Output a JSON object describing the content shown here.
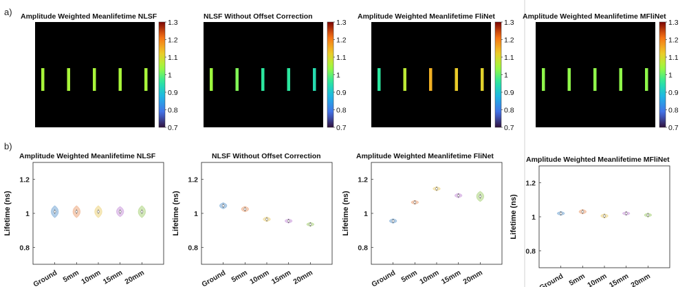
{
  "chart_data": {
    "panel_labels": [
      "a)",
      "b)"
    ],
    "colorbar": {
      "ticks": [
        "1.3",
        "1.2",
        "1.1",
        "1",
        "0.9",
        "0.8",
        "0.7"
      ],
      "range": [
        0.7,
        1.3
      ],
      "colormap": "turbo"
    },
    "heatmaps": [
      {
        "type": "heatmap",
        "title": "Amplitude Weighted Meanlifetime NLSF",
        "background": "#000000",
        "bar_values": [
          1.05,
          1.05,
          1.05,
          1.05,
          1.05
        ]
      },
      {
        "type": "heatmap",
        "title": "NLSF Without Offset Correction",
        "background": "#000000",
        "bar_values": [
          1.04,
          1.02,
          0.96,
          0.96,
          0.94
        ]
      },
      {
        "type": "heatmap",
        "title": "Amplitude Weighted Meanlifetime FliNet",
        "background": "#000000",
        "bar_values": [
          0.96,
          1.07,
          1.15,
          1.12,
          1.11
        ]
      },
      {
        "type": "heatmap",
        "title": "Amplitude Weighted Meanlifetime MFliNet",
        "background": "#000000",
        "bar_values": [
          1.03,
          1.03,
          1.03,
          1.03,
          1.03
        ]
      }
    ],
    "violins": {
      "type": "violin",
      "categories": [
        "Ground",
        "5mm",
        "10mm",
        "15mm",
        "20mm"
      ],
      "ylabel": "Lifetime (ns)",
      "yticks": [
        "0.8",
        "1",
        "1.2"
      ],
      "ylim": [
        0.7,
        1.3
      ],
      "colors": [
        "#9bbfe0",
        "#f2bfa0",
        "#f2dfa0",
        "#d9b6e6",
        "#c2dfa0"
      ],
      "panels": [
        {
          "title": "Amplitude Weighted Meanlifetime NLSF",
          "medians": [
            1.01,
            1.01,
            1.01,
            1.01,
            1.01
          ],
          "spread": [
            0.035,
            0.035,
            0.035,
            0.03,
            0.035
          ]
        },
        {
          "title": "NLSF Without Offset Correction",
          "medians": [
            1.045,
            1.025,
            0.965,
            0.955,
            0.935
          ],
          "spread": [
            0.018,
            0.016,
            0.013,
            0.012,
            0.011
          ]
        },
        {
          "title": "Amplitude Weighted Meanlifetime FliNet",
          "medians": [
            0.955,
            1.065,
            1.145,
            1.105,
            1.1
          ],
          "spread": [
            0.013,
            0.011,
            0.011,
            0.013,
            0.03
          ]
        },
        {
          "title": "Amplitude Weighted Meanlifetime MFliNet",
          "medians": [
            1.02,
            1.03,
            1.005,
            1.02,
            1.01
          ],
          "spread": [
            0.011,
            0.013,
            0.012,
            0.01,
            0.011
          ]
        }
      ]
    }
  }
}
